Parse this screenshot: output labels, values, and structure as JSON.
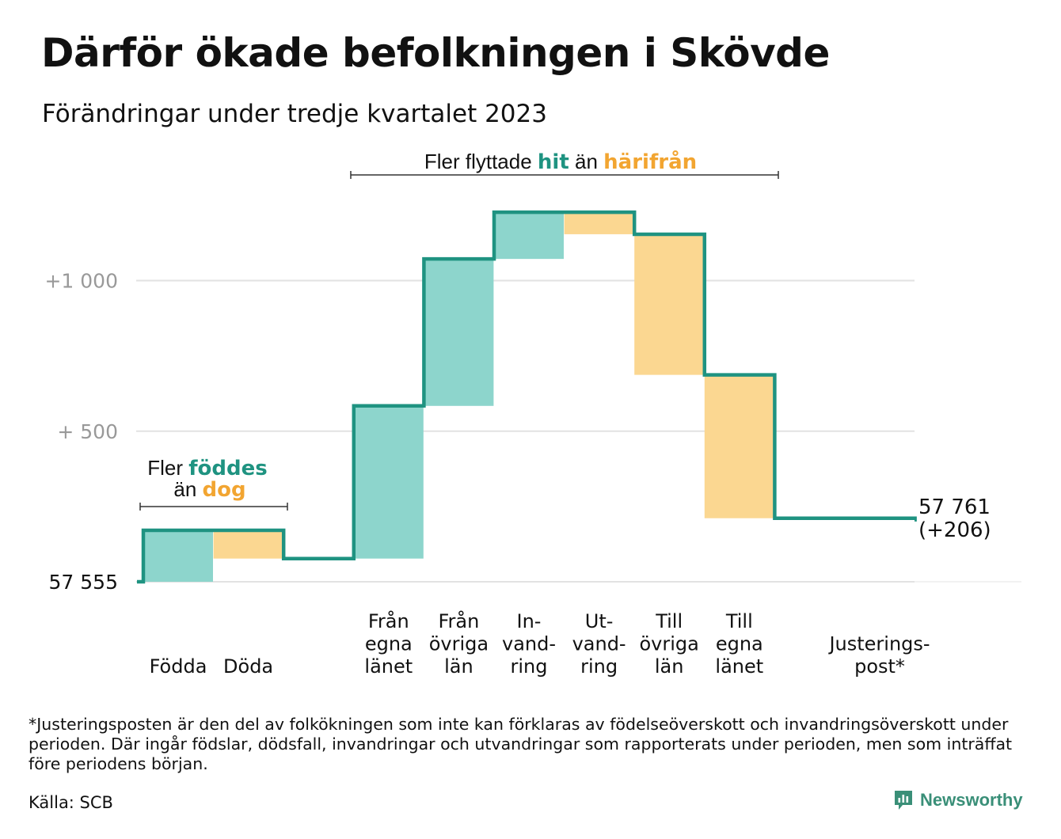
{
  "chart_data": {
    "type": "waterfall",
    "title": "Därför ökade befolkningen i Skövde",
    "subtitle": "Förändringar under tredje kvartalet 2023",
    "baseline": 57555,
    "baseline_label": "57  555",
    "y_ticks": [
      {
        "value": 57555,
        "label": "57  555"
      },
      {
        "value": 58055,
        "label": "+  500"
      },
      {
        "value": 58555,
        "label": "+1   000"
      }
    ],
    "ylim": [
      57555,
      58835
    ],
    "steps": [
      {
        "lines": [
          "Födda"
        ],
        "value": 171,
        "kind": "in"
      },
      {
        "lines": [
          "Döda"
        ],
        "value": -94,
        "kind": "out"
      },
      {
        "lines": [],
        "value": 0,
        "kind": "none"
      },
      {
        "lines": [
          "Från",
          "egna",
          "länet"
        ],
        "value": 507,
        "kind": "in"
      },
      {
        "lines": [
          "Från",
          "övriga",
          "län"
        ],
        "value": 488,
        "kind": "in"
      },
      {
        "lines": [
          "In-",
          "vand-",
          "ring"
        ],
        "value": 155,
        "kind": "in"
      },
      {
        "lines": [
          "Ut-",
          "vand-",
          "ring"
        ],
        "value": -73,
        "kind": "out"
      },
      {
        "lines": [
          "Till",
          "övriga",
          "län"
        ],
        "value": -467,
        "kind": "out"
      },
      {
        "lines": [
          "Till",
          "egna",
          "länet"
        ],
        "value": -476,
        "kind": "out"
      },
      {
        "lines": [],
        "value": 0,
        "kind": "none"
      },
      {
        "lines": [
          "Justerings-",
          "post*"
        ],
        "value": -5,
        "kind": "adjust"
      }
    ],
    "end_value_label": "57 761",
    "end_change_label": "(+206)",
    "annotations": {
      "births": {
        "line1": "Fler",
        "line1_hl": "föddes",
        "line2": "än",
        "line2_hl": "dog"
      },
      "moves": {
        "text1": "Fler flyttade",
        "hl1": "hit",
        "text2": "än",
        "hl2": "härifrån"
      }
    },
    "colors": {
      "in": "#8dd5cc",
      "out": "#fbd791",
      "line": "#1f9381",
      "in_text": "#1f9381",
      "out_text": "#f2a531",
      "grid": "#e2e2e2",
      "tick": "#999999"
    }
  },
  "footnote": "*Justeringsposten är den del av folkökningen som inte kan förklaras av födelseöverskott och invandringsöverskott under perioden. Där ingår födslar, dödsfall, invandringar och utvandringar som rapporterats under perioden, men som inträffat före periodens början.",
  "source": "Källa: SCB",
  "brand": {
    "name": "Newsworthy",
    "icon": "newsworthy-logo-icon"
  }
}
